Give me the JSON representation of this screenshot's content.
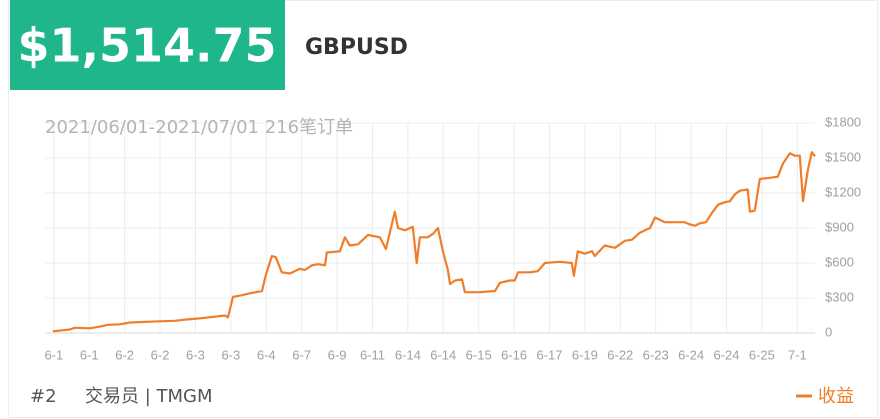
{
  "header": {
    "amount": "$1,514.75",
    "symbol": "GBPUSD"
  },
  "footer": {
    "rank": "#2",
    "trader": "交易员 | TMGM"
  },
  "chart_data": {
    "type": "line",
    "subtitle": "2021/06/01-2021/07/01 216笔订单",
    "x": [
      -0.03,
      0.45,
      0.59,
      1.02,
      1.3,
      1.53,
      1.86,
      2.15,
      2.99,
      3.42,
      3.7,
      4.12,
      4.55,
      4.83,
      4.92,
      5.06,
      5.25,
      5.54,
      5.88,
      5.99,
      6.16,
      6.27,
      6.44,
      6.67,
      6.95,
      7.09,
      7.29,
      7.46,
      7.66,
      7.71,
      8.08,
      8.22,
      8.36,
      8.59,
      8.87,
      9.21,
      9.38,
      9.49,
      9.63,
      9.72,
      9.92,
      10.14,
      10.25,
      10.34,
      10.56,
      10.71,
      10.85,
      10.99,
      11.13,
      11.19,
      11.33,
      11.53,
      11.61,
      12.03,
      12.46,
      12.6,
      12.88,
      13.02,
      13.11,
      13.45,
      13.67,
      13.87,
      14.29,
      14.63,
      14.69,
      14.8,
      15,
      15.2,
      15.28,
      15.56,
      15.85,
      16.13,
      16.33,
      16.55,
      16.84,
      16.98,
      17.26,
      17.68,
      17.82,
      17.97,
      18.11,
      18.25,
      18.42,
      18.59,
      18.76,
      18.95,
      19.1,
      19.24,
      19.38,
      19.6,
      19.66,
      19.8,
      19.94,
      20.23,
      20.45,
      20.59,
      20.79,
      20.93,
      21.07,
      21.16,
      21.3,
      21.41,
      21.5
    ],
    "series": [
      {
        "name": "收益",
        "color": "#f07d2a",
        "values": [
          15,
          30,
          45,
          40,
          55,
          70,
          75,
          90,
          100,
          105,
          115,
          125,
          140,
          150,
          135,
          310,
          320,
          340,
          360,
          500,
          660,
          650,
          520,
          510,
          550,
          540,
          580,
          590,
          580,
          690,
          700,
          820,
          750,
          760,
          840,
          820,
          720,
          860,
          1040,
          900,
          880,
          910,
          600,
          820,
          820,
          850,
          900,
          700,
          540,
          420,
          450,
          460,
          350,
          350,
          360,
          430,
          450,
          450,
          520,
          520,
          530,
          600,
          610,
          600,
          490,
          700,
          680,
          700,
          660,
          750,
          730,
          790,
          800,
          860,
          900,
          990,
          950,
          950,
          950,
          930,
          920,
          940,
          950,
          1030,
          1100,
          1120,
          1130,
          1190,
          1220,
          1230,
          1040,
          1050,
          1320,
          1330,
          1340,
          1450,
          1540,
          1520,
          1520,
          1130,
          1400,
          1550,
          1515
        ]
      }
    ],
    "xlim": [
      -0.25,
      21.5
    ],
    "xticks": [
      {
        "value": 0,
        "label": "6-1"
      },
      {
        "value": 1,
        "label": "6-1"
      },
      {
        "value": 2,
        "label": "6-2"
      },
      {
        "value": 3,
        "label": "6-2"
      },
      {
        "value": 4,
        "label": "6-3"
      },
      {
        "value": 5,
        "label": "6-3"
      },
      {
        "value": 6,
        "label": "6-4"
      },
      {
        "value": 7,
        "label": "6-7"
      },
      {
        "value": 8,
        "label": "6-9"
      },
      {
        "value": 9,
        "label": "6-11"
      },
      {
        "value": 10,
        "label": "6-14"
      },
      {
        "value": 11,
        "label": "6-14"
      },
      {
        "value": 12,
        "label": "6-15"
      },
      {
        "value": 13,
        "label": "6-16"
      },
      {
        "value": 14,
        "label": "6-17"
      },
      {
        "value": 15,
        "label": "6-19"
      },
      {
        "value": 16,
        "label": "6-22"
      },
      {
        "value": 17,
        "label": "6-23"
      },
      {
        "value": 18,
        "label": "6-24"
      },
      {
        "value": 19,
        "label": "6-24"
      },
      {
        "value": 20,
        "label": "6-25"
      },
      {
        "value": 21,
        "label": "7-1"
      }
    ],
    "ylim": [
      0,
      1800
    ],
    "yticks": [
      0,
      {
        "value": 300,
        "label": "$300"
      },
      {
        "value": 600,
        "label": "$600"
      },
      {
        "value": 900,
        "label": "$900"
      },
      {
        "value": 1200,
        "label": "$1200"
      },
      {
        "value": 1500,
        "label": "$1500"
      },
      {
        "value": 1800,
        "label": "$1800"
      }
    ],
    "grid": true,
    "legend": "bottom-right"
  }
}
